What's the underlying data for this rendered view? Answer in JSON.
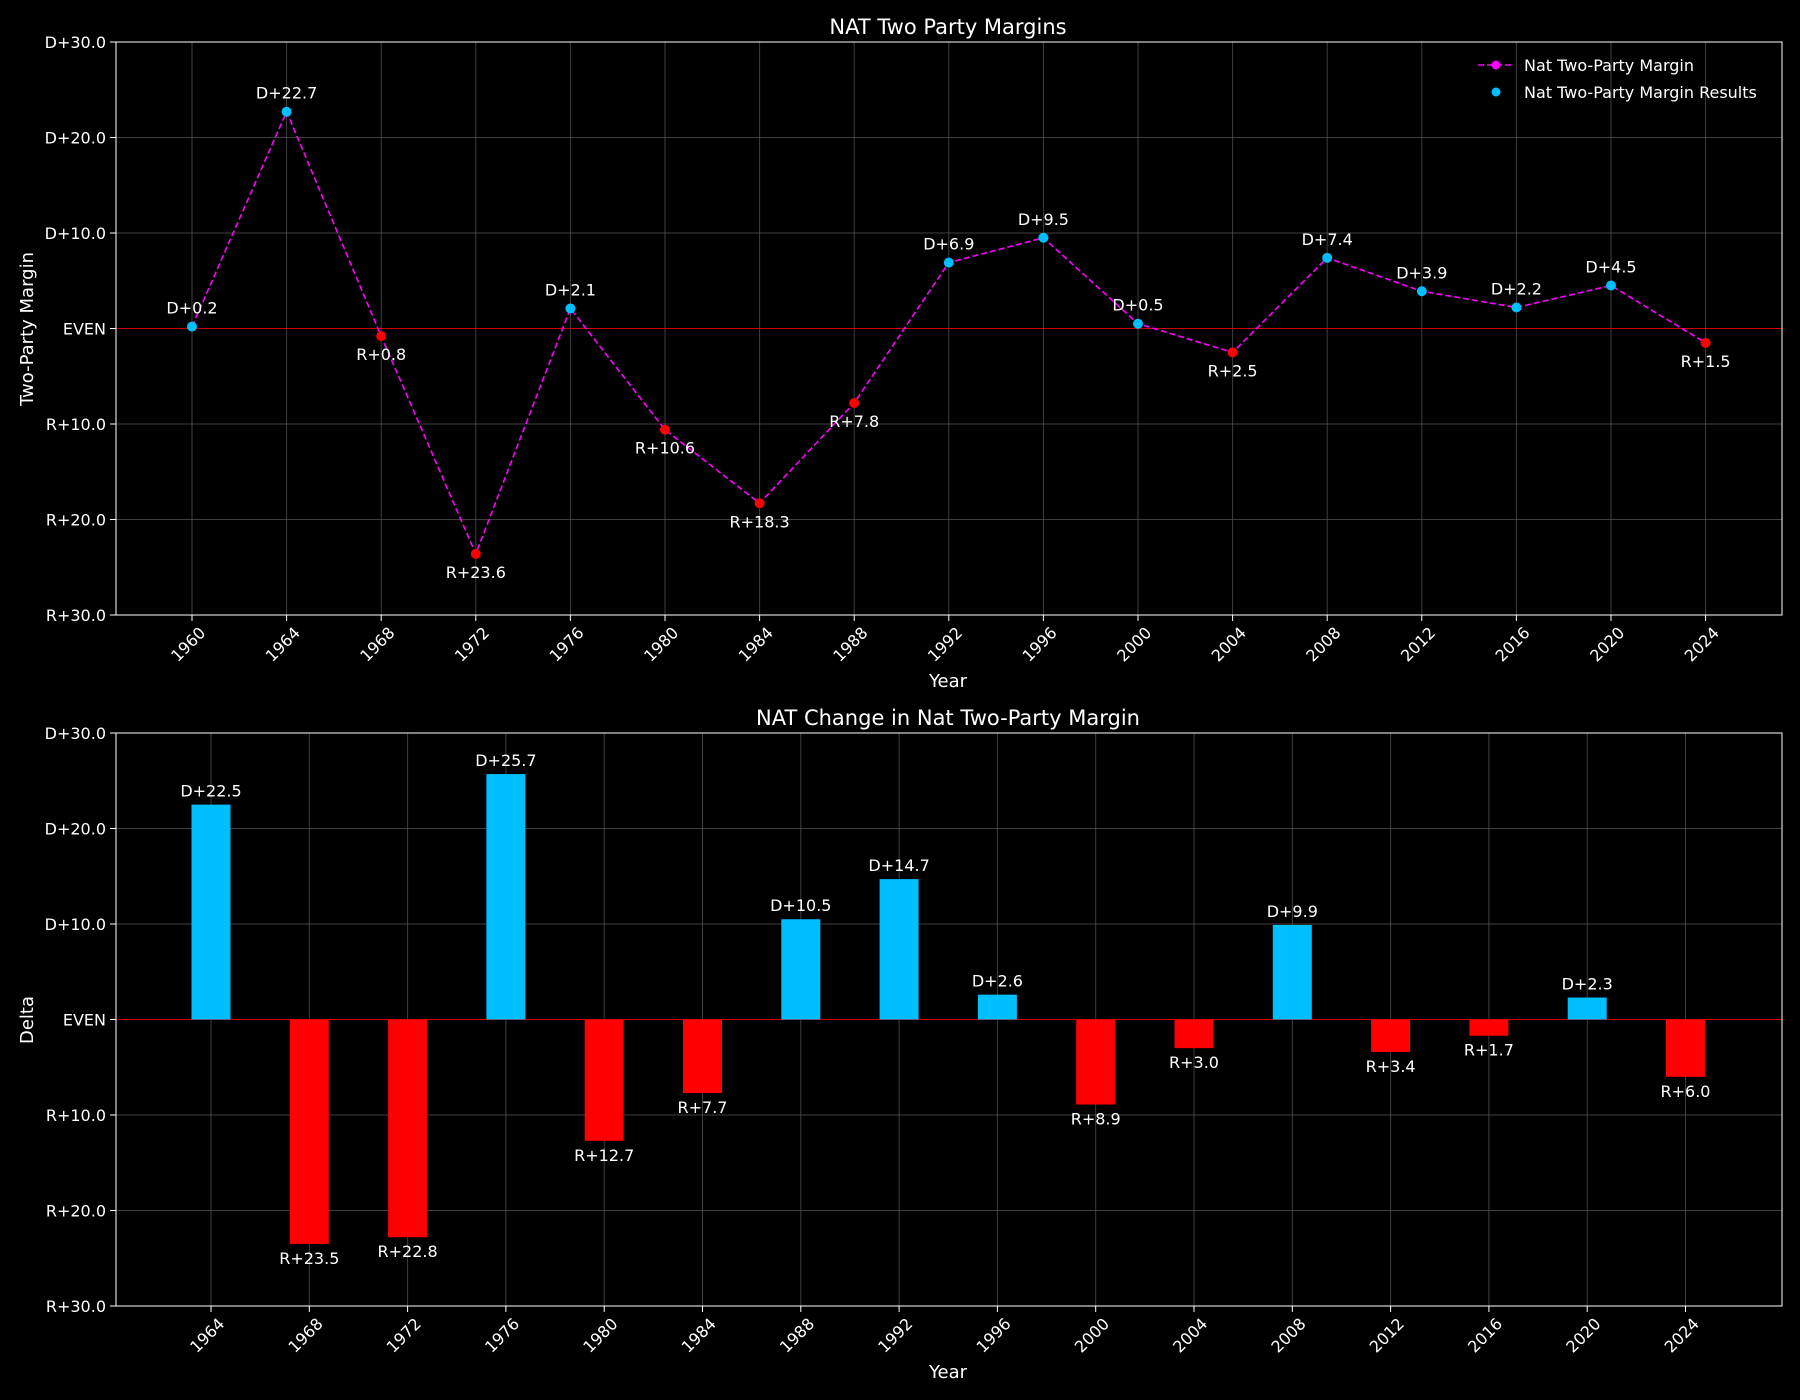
{
  "colors": {
    "background": "#000000",
    "text": "#ffffff",
    "dem": "#00bfff",
    "rep": "#ff0000",
    "line": "#ff00ff",
    "even_line": "#cc0000",
    "grid": "#5a5a5a",
    "axes": "#ffffff"
  },
  "chart_data": [
    {
      "type": "line",
      "title": "NAT Two Party Margins",
      "xlabel": "Year",
      "ylabel": "Two-Party Margin",
      "ylim": [
        -30,
        30
      ],
      "yticks": [
        30,
        20,
        10,
        0,
        -10,
        -20,
        -30
      ],
      "ytick_labels": [
        "D+30.0",
        "D+20.0",
        "D+10.0",
        "EVEN",
        "R+10.0",
        "R+20.0",
        "R+30.0"
      ],
      "grid": true,
      "legend_position": "top-right",
      "legend": [
        "Nat Two-Party Margin",
        "Nat Two-Party Margin Results"
      ],
      "x": [
        1960,
        1964,
        1968,
        1972,
        1976,
        1980,
        1984,
        1988,
        1992,
        1996,
        2000,
        2004,
        2008,
        2012,
        2016,
        2020,
        2024
      ],
      "values": [
        0.2,
        22.7,
        -0.8,
        -23.6,
        2.1,
        -10.6,
        -18.3,
        -7.8,
        6.9,
        9.5,
        0.5,
        -2.5,
        7.4,
        3.9,
        2.2,
        4.5,
        -1.5
      ],
      "labels": [
        "D+0.2",
        "D+22.7",
        "R+0.8",
        "R+23.6",
        "D+2.1",
        "R+10.6",
        "R+18.3",
        "R+7.8",
        "D+6.9",
        "D+9.5",
        "D+0.5",
        "R+2.5",
        "D+7.4",
        "D+3.9",
        "D+2.2",
        "D+4.5",
        "R+1.5"
      ]
    },
    {
      "type": "bar",
      "title": "NAT Change in Nat Two-Party Margin",
      "xlabel": "Year",
      "ylabel": "Delta",
      "ylim": [
        -30,
        30
      ],
      "yticks": [
        30,
        20,
        10,
        0,
        -10,
        -20,
        -30
      ],
      "ytick_labels": [
        "D+30.0",
        "D+20.0",
        "D+10.0",
        "EVEN",
        "R+10.0",
        "R+20.0",
        "R+30.0"
      ],
      "grid": true,
      "categories": [
        1964,
        1968,
        1972,
        1976,
        1980,
        1984,
        1988,
        1992,
        1996,
        2000,
        2004,
        2008,
        2012,
        2016,
        2020,
        2024
      ],
      "values": [
        22.5,
        -23.5,
        -22.8,
        25.7,
        -12.7,
        -7.7,
        10.5,
        14.7,
        2.6,
        -8.9,
        -3.0,
        9.9,
        -3.4,
        -1.7,
        2.3,
        -6.0
      ],
      "labels": [
        "D+22.5",
        "R+23.5",
        "R+22.8",
        "D+25.7",
        "R+12.7",
        "R+7.7",
        "D+10.5",
        "D+14.7",
        "D+2.6",
        "R+8.9",
        "R+3.0",
        "D+9.9",
        "R+3.4",
        "R+1.7",
        "D+2.3",
        "R+6.0"
      ]
    }
  ]
}
